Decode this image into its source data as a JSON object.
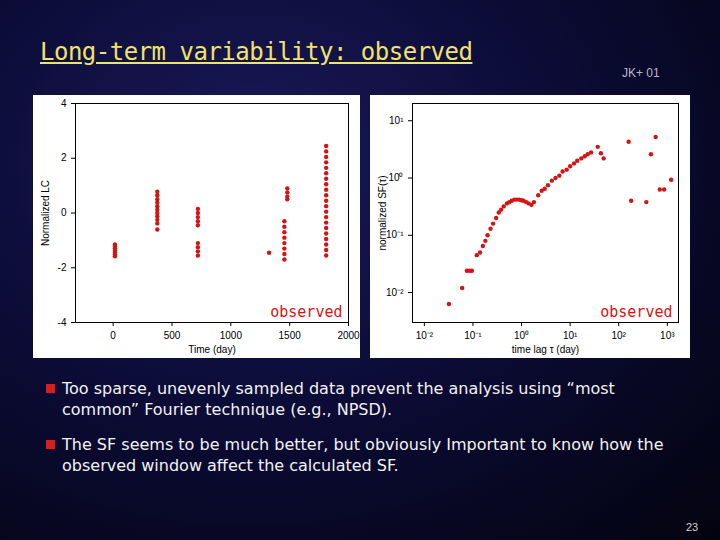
{
  "slide": {
    "title": "Long-term variability: observed",
    "citation": "JK+ 01",
    "bullets": [
      "Too sparse, unevenly sampled data prevent the analysis using “most common” Fourier technique (e.g., NPSD).",
      "The SF seems to be much better, but obviously Important to know how the observed window affect the calculated SF."
    ],
    "page": 23
  },
  "chart_data": [
    {
      "type": "scatter",
      "x_label": "Time (day)",
      "y_label": "Normalized LC",
      "annotation": "observed",
      "color": "#d41414",
      "xlim": [
        -320,
        2000
      ],
      "xticks": [
        0,
        500,
        1000,
        1500,
        2000
      ],
      "ylim": [
        -4,
        4
      ],
      "yticks": [
        -4,
        -2,
        0,
        2,
        4
      ],
      "grid": false,
      "x": [
        15,
        15,
        15,
        15,
        15,
        15,
        15,
        375,
        375,
        375,
        375,
        375,
        375,
        375,
        375,
        375,
        375,
        375,
        720,
        720,
        720,
        720,
        720,
        720,
        720,
        720,
        720,
        1325,
        1455,
        1455,
        1455,
        1455,
        1455,
        1455,
        1455,
        1455,
        1480,
        1480,
        1480,
        1480,
        1810,
        1810,
        1810,
        1810,
        1810,
        1810,
        1810,
        1810,
        1810,
        1810,
        1810,
        1810,
        1810,
        1810,
        1810,
        1810,
        1810,
        1810,
        1810,
        1810,
        1810
      ],
      "values": [
        -1.15,
        -1.22,
        -1.3,
        -1.38,
        -1.45,
        -1.52,
        -1.58,
        0.78,
        0.65,
        0.5,
        0.38,
        0.25,
        0.12,
        0.0,
        -0.12,
        -0.25,
        -0.38,
        -0.6,
        0.15,
        0.0,
        -0.15,
        -0.3,
        -0.45,
        -1.1,
        -1.25,
        -1.4,
        -1.55,
        -1.45,
        -0.3,
        -0.5,
        -0.7,
        -0.9,
        -1.1,
        -1.3,
        -1.5,
        -1.7,
        0.9,
        0.75,
        0.6,
        0.5,
        2.45,
        2.25,
        2.05,
        1.85,
        1.65,
        1.45,
        1.25,
        1.05,
        0.85,
        0.65,
        0.45,
        0.25,
        0.05,
        -0.15,
        -0.35,
        -0.55,
        -0.75,
        -0.95,
        -1.15,
        -1.35,
        -1.55
      ]
    },
    {
      "type": "scatter",
      "x_label": "time lag τ (day)",
      "y_label": "normalized SF(τ)",
      "annotation": "observed",
      "color": "#d41414",
      "log": true,
      "grid": false,
      "xlim": [
        0.0057,
        1700
      ],
      "xticks": [
        {
          "value": 0.01,
          "label": "10⁻²"
        },
        {
          "value": 0.1,
          "label": "10⁻¹"
        },
        {
          "value": 1,
          "label": "10⁰"
        },
        {
          "value": 10,
          "label": "10¹"
        },
        {
          "value": 100,
          "label": "10²"
        },
        {
          "value": 1000,
          "label": "10³"
        }
      ],
      "ylim": [
        0.003,
        20
      ],
      "yticks": [
        {
          "value": 0.01,
          "label": "10⁻²"
        },
        {
          "value": 0.1,
          "label": "10⁻¹"
        },
        {
          "value": 1,
          "label": "10⁰"
        },
        {
          "value": 10,
          "label": "10¹"
        }
      ],
      "x": [
        0.032,
        0.06,
        0.075,
        0.085,
        0.095,
        0.12,
        0.14,
        0.16,
        0.18,
        0.2,
        0.23,
        0.26,
        0.3,
        0.34,
        0.38,
        0.43,
        0.5,
        0.56,
        0.63,
        0.71,
        0.8,
        0.9,
        1.0,
        1.1,
        1.25,
        1.4,
        1.6,
        1.8,
        2.2,
        2.6,
        3.0,
        3.5,
        4.2,
        5,
        6,
        7,
        8.5,
        10,
        12,
        14,
        17,
        20,
        23,
        27,
        37,
        43,
        49,
        160,
        180,
        370,
        460,
        575,
        700,
        860,
        1200
      ],
      "values": [
        0.0063,
        0.012,
        0.024,
        0.024,
        0.024,
        0.045,
        0.05,
        0.065,
        0.08,
        0.1,
        0.13,
        0.16,
        0.2,
        0.25,
        0.28,
        0.32,
        0.36,
        0.38,
        0.4,
        0.42,
        0.42,
        0.42,
        0.41,
        0.4,
        0.38,
        0.36,
        0.34,
        0.38,
        0.5,
        0.6,
        0.65,
        0.75,
        0.9,
        1.0,
        1.1,
        1.3,
        1.4,
        1.6,
        1.8,
        2.0,
        2.2,
        2.4,
        2.6,
        2.8,
        3.5,
        2.7,
        2.2,
        4.3,
        0.4,
        0.38,
        2.6,
        5.2,
        0.63,
        0.63,
        0.93
      ]
    }
  ]
}
